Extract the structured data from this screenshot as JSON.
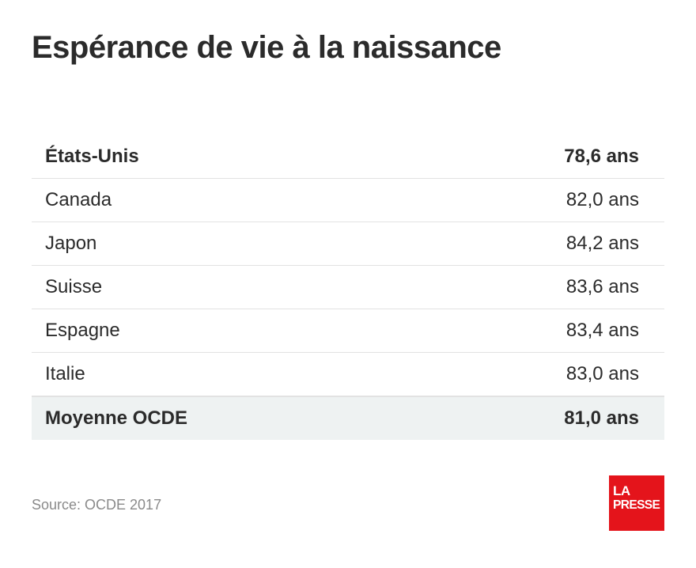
{
  "title": "Espérance de vie à la naissance",
  "chart_data": {
    "type": "table",
    "title": "Espérance de vie à la naissance",
    "rows": [
      {
        "country": "États-Unis",
        "value_label": "78,6 ans",
        "value": 78.6,
        "bold": true,
        "shaded": false
      },
      {
        "country": "Canada",
        "value_label": "82,0 ans",
        "value": 82.0,
        "bold": false,
        "shaded": false
      },
      {
        "country": "Japon",
        "value_label": "84,2 ans",
        "value": 84.2,
        "bold": false,
        "shaded": false
      },
      {
        "country": "Suisse",
        "value_label": "83,6 ans",
        "value": 83.6,
        "bold": false,
        "shaded": false
      },
      {
        "country": "Espagne",
        "value_label": "83,4 ans",
        "value": 83.4,
        "bold": false,
        "shaded": false
      },
      {
        "country": "Italie",
        "value_label": "83,0 ans",
        "value": 83.0,
        "bold": false,
        "shaded": false
      },
      {
        "country": "Moyenne OCDE",
        "value_label": "81,0 ans",
        "value": 81.0,
        "bold": true,
        "shaded": true
      }
    ]
  },
  "source": "Source: OCDE 2017",
  "logo": {
    "line1": "LA",
    "line2": "PRESSE",
    "color": "#e4141b"
  },
  "colors": {
    "text": "#2b2b2b",
    "muted": "#8a8a8a",
    "divider": "#e2e2e2",
    "shade": "#eef2f2"
  }
}
